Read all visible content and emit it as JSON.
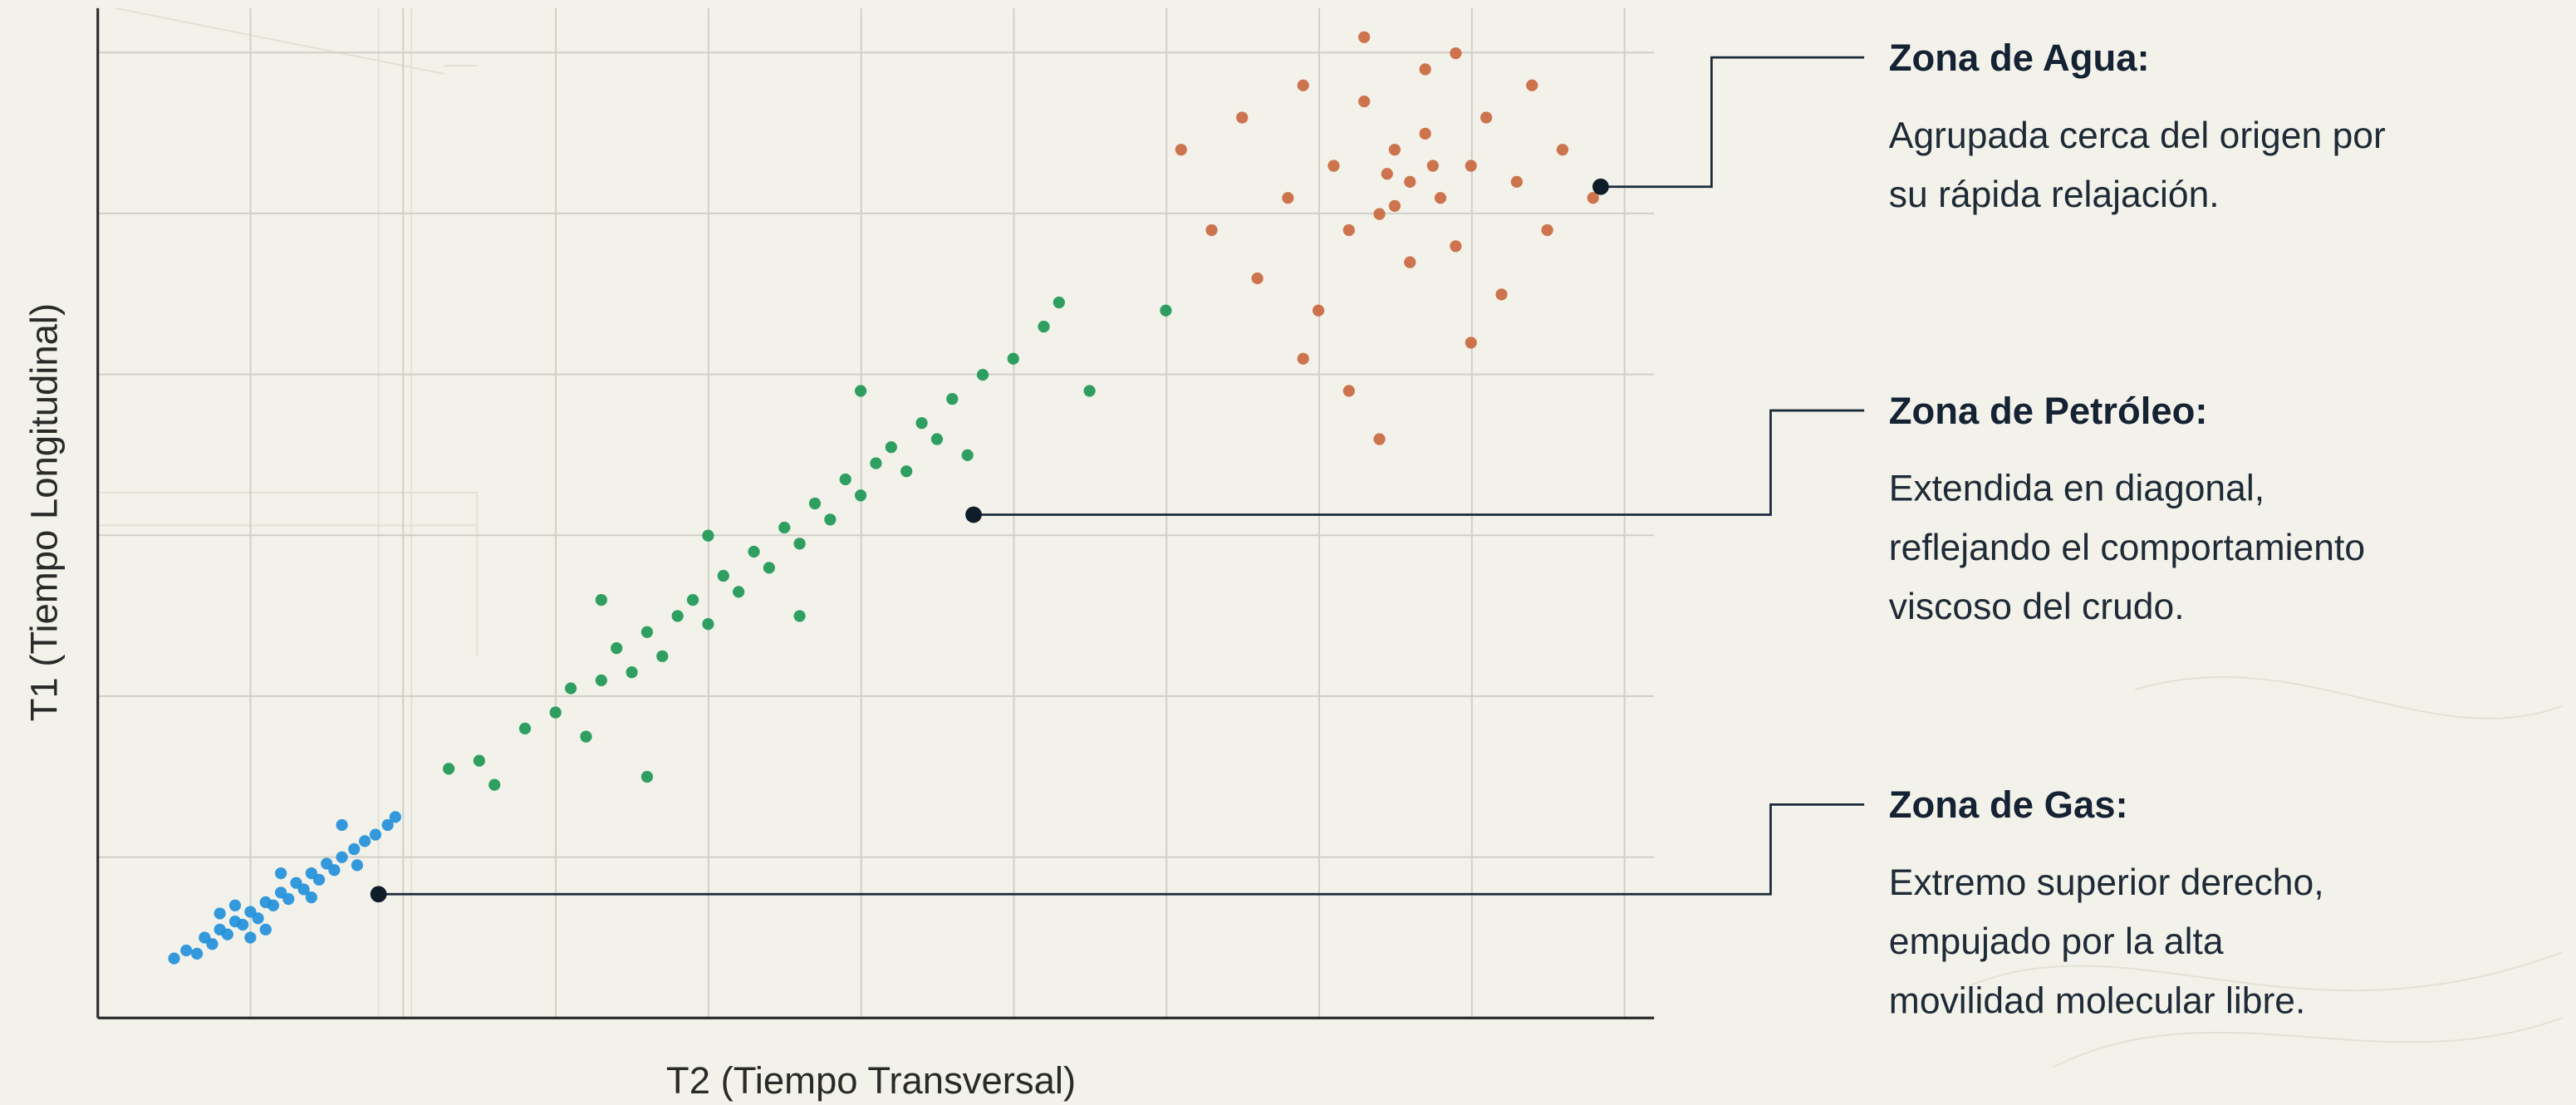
{
  "chart_data": {
    "type": "scatter",
    "x_label": "T2 (Tiempo Transversal)",
    "y_label": "T1 (Tiempo Longitudinal)",
    "xlim": [
      0,
      10.2
    ],
    "ylim": [
      0,
      6.28
    ],
    "grid": true,
    "series": [
      {
        "color": "#1f8fda",
        "x": [
          0.5,
          0.58,
          0.65,
          0.7,
          0.75,
          0.8,
          0.85,
          0.9,
          0.95,
          1.0,
          1.05,
          1.1,
          1.15,
          1.2,
          1.25,
          1.3,
          1.35,
          1.4,
          1.45,
          1.5,
          1.55,
          1.6,
          1.68,
          1.75,
          1.82,
          1.9,
          1.95,
          1.0,
          1.2,
          0.8,
          1.4,
          1.6,
          1.1,
          0.9,
          1.7
        ],
        "values": [
          0.37,
          0.42,
          0.4,
          0.5,
          0.46,
          0.55,
          0.52,
          0.6,
          0.58,
          0.66,
          0.62,
          0.72,
          0.7,
          0.78,
          0.74,
          0.84,
          0.8,
          0.9,
          0.86,
          0.96,
          0.92,
          1.0,
          1.05,
          1.1,
          1.14,
          1.2,
          1.25,
          0.5,
          0.9,
          0.65,
          0.75,
          1.2,
          0.55,
          0.7,
          0.95
        ]
      },
      {
        "color": "#1a9652",
        "x": [
          2.3,
          2.5,
          2.6,
          2.8,
          3.0,
          3.1,
          3.2,
          3.3,
          3.4,
          3.5,
          3.6,
          3.7,
          3.8,
          3.9,
          4.0,
          4.1,
          4.2,
          4.3,
          4.4,
          4.5,
          4.6,
          4.7,
          4.8,
          4.9,
          5.0,
          5.1,
          5.2,
          5.3,
          5.4,
          5.5,
          5.6,
          5.8,
          6.0,
          6.2,
          6.3,
          3.6,
          4.0,
          4.6,
          5.0,
          3.3,
          5.7,
          6.5,
          7.0
        ],
        "values": [
          1.55,
          1.6,
          1.45,
          1.8,
          1.9,
          2.05,
          1.75,
          2.1,
          2.3,
          2.15,
          2.4,
          2.25,
          2.5,
          2.6,
          2.45,
          2.75,
          2.65,
          2.9,
          2.8,
          3.05,
          2.95,
          3.2,
          3.1,
          3.35,
          3.25,
          3.45,
          3.55,
          3.4,
          3.7,
          3.6,
          3.85,
          4.0,
          4.1,
          4.3,
          4.45,
          1.5,
          3.0,
          2.5,
          3.9,
          2.6,
          3.5,
          3.9,
          4.4
        ]
      },
      {
        "color": "#c9663d",
        "x": [
          7.1,
          7.3,
          7.5,
          7.6,
          7.8,
          7.9,
          8.0,
          8.1,
          8.2,
          8.3,
          8.4,
          8.5,
          8.6,
          8.6,
          8.7,
          8.7,
          8.8,
          8.9,
          9.0,
          9.1,
          9.2,
          9.3,
          9.4,
          9.5,
          9.6,
          9.8,
          8.2,
          8.4,
          7.9,
          8.9,
          8.3,
          9.0,
          8.5,
          8.75,
          8.45
        ],
        "values": [
          5.4,
          4.9,
          5.6,
          4.6,
          5.1,
          5.8,
          4.4,
          5.3,
          4.9,
          5.7,
          5.0,
          5.4,
          5.2,
          4.7,
          5.5,
          5.9,
          5.1,
          4.8,
          5.3,
          5.6,
          4.5,
          5.2,
          5.8,
          4.9,
          5.4,
          5.1,
          3.9,
          3.6,
          4.1,
          6.0,
          6.1,
          4.2,
          5.05,
          5.3,
          5.25
        ]
      }
    ],
    "annotations": [
      {
        "title": "Zona de Agua:",
        "lines": [
          "Agrupada cerca del origen por",
          "su rápida relajación."
        ],
        "x": 9.85,
        "y": 5.17
      },
      {
        "title": "Zona de Petróleo:",
        "lines": [
          "Extendida en diagonal,",
          "reflejando el comportamiento",
          "viscoso del crudo."
        ],
        "x": 5.74,
        "y": 3.13
      },
      {
        "title": "Zona de Gas:",
        "lines": [
          "Extremo superior derecho,",
          "empujado por la alta",
          "movilidad molecular libre."
        ],
        "x": 1.84,
        "y": 0.77
      }
    ]
  }
}
